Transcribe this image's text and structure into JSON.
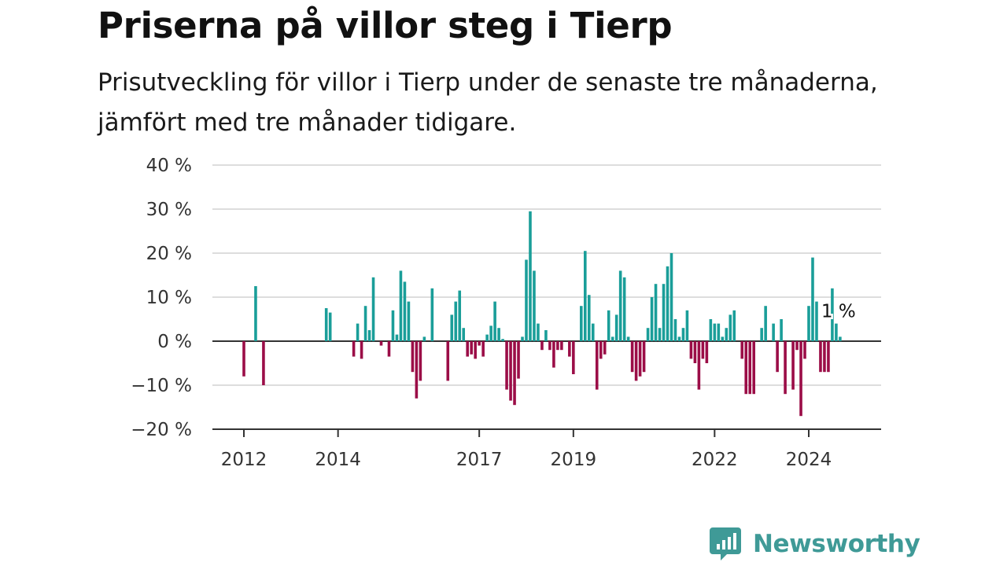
{
  "header": {
    "title": "Priserna på villor steg i Tierp",
    "subtitle": "Prisutveckling för villor i Tierp under de senaste tre månaderna, jämfört med tre månader tidigare."
  },
  "brand": {
    "name": "Newsworthy",
    "icon": "newsworthy-logo-icon",
    "color": "#3f9a97"
  },
  "colors": {
    "positive": "#1a9e99",
    "negative": "#9b0d47",
    "grid": "#dddddd",
    "baseline": "#333333"
  },
  "chart_data": {
    "type": "bar",
    "title": "Priserna på villor steg i Tierp",
    "subtitle": "Prisutveckling för villor i Tierp under de senaste tre månaderna, jämfört med tre månader tidigare.",
    "xlabel": "",
    "ylabel": "",
    "ylim": [
      -20,
      40
    ],
    "y_ticks": [
      40,
      30,
      20,
      10,
      0,
      -10,
      -20
    ],
    "y_tick_labels": [
      "40 %",
      "30 %",
      "20 %",
      "10 %",
      "0 %",
      "−10 %",
      "−20 %"
    ],
    "x_ticks": [
      "2012",
      "2014",
      "2017",
      "2019",
      "2022",
      "2024"
    ],
    "x_tick_dates": [
      "2012-01",
      "2014-01",
      "2017-01",
      "2019-01",
      "2022-01",
      "2024-01"
    ],
    "grid": true,
    "last_value_label": "1 %",
    "series": [
      {
        "values": [
          [
            "2012-01",
            -8
          ],
          [
            "2012-04",
            12.5
          ],
          [
            "2012-06",
            -10
          ],
          [
            "2013-10",
            7.5
          ],
          [
            "2013-11",
            6.5
          ],
          [
            "2014-05",
            -3.5
          ],
          [
            "2014-06",
            4
          ],
          [
            "2014-07",
            -4
          ],
          [
            "2014-08",
            8
          ],
          [
            "2014-09",
            2.5
          ],
          [
            "2014-10",
            14.5
          ],
          [
            "2014-12",
            -1
          ],
          [
            "2015-02",
            -3.5
          ],
          [
            "2015-03",
            7
          ],
          [
            "2015-04",
            1.5
          ],
          [
            "2015-05",
            16
          ],
          [
            "2015-06",
            13.5
          ],
          [
            "2015-07",
            9
          ],
          [
            "2015-08",
            -7
          ],
          [
            "2015-09",
            -13
          ],
          [
            "2015-10",
            -9
          ],
          [
            "2015-11",
            1
          ],
          [
            "2016-01",
            12
          ],
          [
            "2016-05",
            -9
          ],
          [
            "2016-06",
            6
          ],
          [
            "2016-07",
            9
          ],
          [
            "2016-08",
            11.5
          ],
          [
            "2016-09",
            3
          ],
          [
            "2016-10",
            -3.5
          ],
          [
            "2016-11",
            -3
          ],
          [
            "2016-12",
            -4
          ],
          [
            "2017-01",
            -1
          ],
          [
            "2017-02",
            -3.5
          ],
          [
            "2017-03",
            1.5
          ],
          [
            "2017-04",
            3.5
          ],
          [
            "2017-05",
            9
          ],
          [
            "2017-06",
            3
          ],
          [
            "2017-07",
            0.5
          ],
          [
            "2017-08",
            -11
          ],
          [
            "2017-09",
            -13.5
          ],
          [
            "2017-10",
            -14.5
          ],
          [
            "2017-11",
            -8.5
          ],
          [
            "2017-12",
            1
          ],
          [
            "2018-01",
            18.5
          ],
          [
            "2018-02",
            29.5
          ],
          [
            "2018-03",
            16
          ],
          [
            "2018-04",
            4
          ],
          [
            "2018-05",
            -2
          ],
          [
            "2018-06",
            2.5
          ],
          [
            "2018-07",
            -2
          ],
          [
            "2018-08",
            -6
          ],
          [
            "2018-09",
            -2
          ],
          [
            "2018-10",
            -2
          ],
          [
            "2018-12",
            -3.5
          ],
          [
            "2019-01",
            -7.5
          ],
          [
            "2019-03",
            8
          ],
          [
            "2019-04",
            20.5
          ],
          [
            "2019-05",
            10.5
          ],
          [
            "2019-06",
            4
          ],
          [
            "2019-07",
            -11
          ],
          [
            "2019-08",
            -4
          ],
          [
            "2019-09",
            -3
          ],
          [
            "2019-10",
            7
          ],
          [
            "2019-11",
            1
          ],
          [
            "2019-12",
            6
          ],
          [
            "2020-01",
            16
          ],
          [
            "2020-02",
            14.5
          ],
          [
            "2020-03",
            1
          ],
          [
            "2020-04",
            -7
          ],
          [
            "2020-05",
            -9
          ],
          [
            "2020-06",
            -8
          ],
          [
            "2020-07",
            -7
          ],
          [
            "2020-08",
            3
          ],
          [
            "2020-09",
            10
          ],
          [
            "2020-10",
            13
          ],
          [
            "2020-11",
            3
          ],
          [
            "2020-12",
            13
          ],
          [
            "2021-01",
            17
          ],
          [
            "2021-02",
            20
          ],
          [
            "2021-03",
            5
          ],
          [
            "2021-04",
            1
          ],
          [
            "2021-05",
            3
          ],
          [
            "2021-06",
            7
          ],
          [
            "2021-07",
            -4
          ],
          [
            "2021-08",
            -5
          ],
          [
            "2021-09",
            -11
          ],
          [
            "2021-10",
            -4
          ],
          [
            "2021-11",
            -5
          ],
          [
            "2021-12",
            5
          ],
          [
            "2022-01",
            4
          ],
          [
            "2022-02",
            4
          ],
          [
            "2022-03",
            1
          ],
          [
            "2022-04",
            3
          ],
          [
            "2022-05",
            6
          ],
          [
            "2022-06",
            7
          ],
          [
            "2022-08",
            -4
          ],
          [
            "2022-09",
            -12
          ],
          [
            "2022-10",
            -12
          ],
          [
            "2022-11",
            -12
          ],
          [
            "2023-01",
            3
          ],
          [
            "2023-02",
            8
          ],
          [
            "2023-04",
            4
          ],
          [
            "2023-05",
            -7
          ],
          [
            "2023-06",
            5
          ],
          [
            "2023-07",
            -12
          ],
          [
            "2023-09",
            -11
          ],
          [
            "2023-10",
            -2
          ],
          [
            "2023-11",
            -17
          ],
          [
            "2023-12",
            -4
          ],
          [
            "2024-01",
            8
          ],
          [
            "2024-02",
            19
          ],
          [
            "2024-03",
            9
          ],
          [
            "2024-04",
            -7
          ],
          [
            "2024-05",
            -7
          ],
          [
            "2024-06",
            -7
          ],
          [
            "2024-07",
            12
          ],
          [
            "2024-08",
            4
          ],
          [
            "2024-09",
            1
          ]
        ]
      }
    ]
  }
}
